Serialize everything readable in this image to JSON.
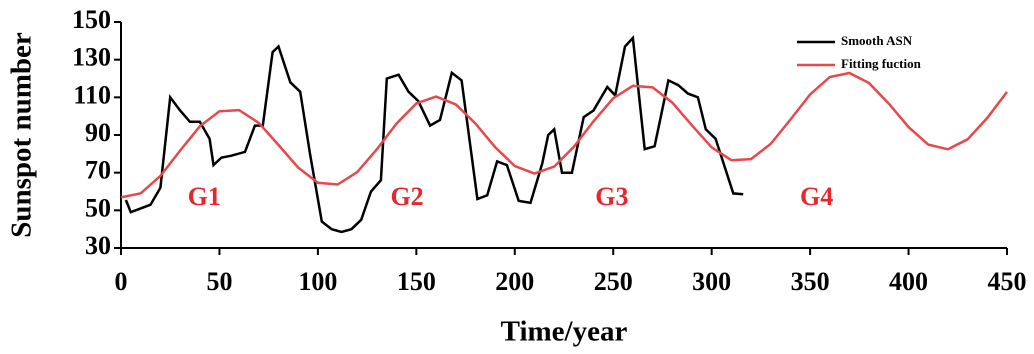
{
  "chart_data": {
    "type": "line",
    "x_label": "Time/year",
    "y_label": "Sunspot number",
    "xlim": [
      0,
      450
    ],
    "xticks": [
      0,
      50,
      100,
      150,
      200,
      250,
      300,
      350,
      400,
      450
    ],
    "ylim": [
      30,
      150
    ],
    "yticks": [
      30,
      50,
      70,
      90,
      110,
      130,
      150
    ],
    "legend": "top-right",
    "annotations": [
      "G1",
      "G2",
      "G3",
      "G4"
    ],
    "series": [
      {
        "name": "Smooth ASN",
        "color": "#000000",
        "x": [
          2.5,
          5,
          10,
          15,
          20,
          25,
          30,
          35,
          40,
          45,
          47,
          51,
          56,
          63,
          68,
          72,
          77,
          80,
          86,
          91,
          96,
          102,
          107,
          112,
          117,
          122,
          127,
          132,
          135,
          141,
          146,
          151,
          157,
          162,
          168,
          173,
          181,
          186,
          191,
          196,
          202,
          208,
          214,
          217,
          220,
          224,
          229,
          235,
          240,
          247,
          251,
          256,
          260,
          266,
          271,
          278,
          283,
          288,
          293,
          297,
          302,
          311,
          316
        ],
        "values": [
          55.5,
          49,
          51,
          53,
          62,
          110,
          103,
          97,
          97,
          88,
          74,
          78,
          79,
          81,
          95,
          95,
          134,
          137,
          118,
          113,
          80,
          44,
          40,
          38.5,
          40,
          45,
          60,
          66,
          120,
          122,
          113,
          108,
          95,
          98,
          123,
          119,
          56,
          58,
          76,
          74,
          55,
          54,
          75,
          90,
          93,
          70,
          70,
          99.5,
          103,
          115.5,
          111,
          137,
          141.5,
          82.5,
          84,
          119,
          116.5,
          112,
          110,
          93,
          88,
          59,
          58.5
        ]
      },
      {
        "name": "Fitting fuction",
        "color": "#e8474b",
        "x": [
          0,
          10,
          20,
          30,
          40,
          50,
          60,
          70,
          80,
          90,
          100,
          110,
          120,
          130,
          140,
          150,
          160,
          170,
          180,
          190,
          200,
          210,
          220,
          230,
          240,
          250,
          260,
          270,
          280,
          290,
          300,
          310,
          320,
          330,
          340,
          350,
          360,
          370,
          380,
          390,
          400,
          410,
          420,
          430,
          440,
          450
        ],
        "values": [
          56.9,
          59.0,
          68.3,
          81.7,
          94.6,
          102.6,
          103.2,
          96.4,
          84.7,
          72.7,
          64.6,
          63.7,
          70.3,
          82.5,
          96.1,
          106.7,
          110.4,
          106.3,
          96.1,
          83.6,
          73.5,
          69.5,
          73.2,
          83.7,
          97.3,
          109.5,
          116.1,
          115.3,
          107.2,
          95.1,
          83.4,
          76.6,
          77.2,
          85.3,
          98.2,
          111.5,
          120.8,
          122.9,
          117.5,
          106.6,
          94.2,
          84.9,
          82.4,
          87.7,
          99.1,
          112.9
        ]
      }
    ]
  }
}
